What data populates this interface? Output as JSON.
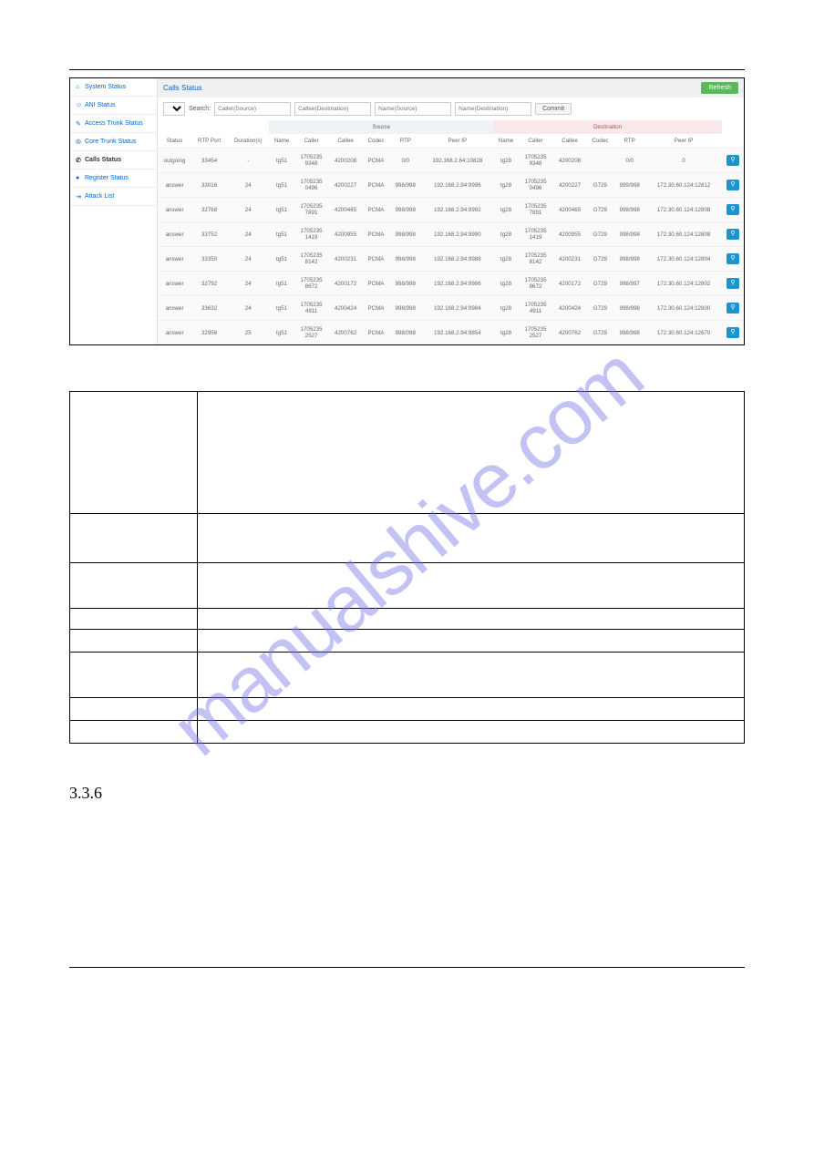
{
  "watermark": "manualshive.com",
  "section_number": "3.3.6",
  "sidebar": {
    "items": [
      {
        "label": "System Status",
        "icon": "home"
      },
      {
        "label": "ANI Status",
        "icon": "user"
      },
      {
        "label": "Access Trunk Status",
        "icon": "pencil"
      },
      {
        "label": "Core Trunk Status",
        "icon": "plug"
      },
      {
        "label": "Calls Status",
        "icon": "phone",
        "active": true
      },
      {
        "label": "Register Status",
        "icon": "record"
      },
      {
        "label": "Attack List",
        "icon": "exit"
      }
    ]
  },
  "panel": {
    "title": "Calls Status",
    "refresh_label": "Refresh",
    "page_size": "10",
    "search_label": "Search:",
    "placeholders": [
      "Caller(Source)",
      "Callee(Destination)",
      "Name(Source)",
      "Name(Destination)"
    ],
    "commit_label": "Commit",
    "group_headers": {
      "source": "Source",
      "destination": "Destination"
    },
    "columns": [
      "Status",
      "RTP Port",
      "Duration(s)",
      "Name",
      "Caller",
      "Callee",
      "Codec",
      "RTP",
      "Peer IP",
      "Name",
      "Caller",
      "Callee",
      "Codec",
      "RTP",
      "Peer IP",
      ""
    ],
    "rows": [
      {
        "status": "outgoing",
        "rtp": "33454",
        "dur": "-",
        "sname": "tg51",
        "scaller": "17052359348",
        "scallee": "4200208",
        "scodec": "PCMA",
        "srtp": "0/0",
        "speer": "192.168.2.64:10828",
        "dname": "tg28",
        "dcaller": "17052359348",
        "dcallee": "4200208",
        "dcodec": "",
        "drtp": "0/0",
        "dpeer": "0"
      },
      {
        "status": "answer",
        "rtp": "33016",
        "dur": "24",
        "sname": "tg51",
        "scaller": "17052350496",
        "scallee": "4200227",
        "scodec": "PCMA",
        "srtp": "998/998",
        "speer": "192.168.2.94:9996",
        "dname": "tg28",
        "dcaller": "17052350496",
        "dcallee": "4200227",
        "dcodec": "G729",
        "drtp": "999/998",
        "dpeer": "172.30.60.124:12812"
      },
      {
        "status": "answer",
        "rtp": "32768",
        "dur": "24",
        "sname": "tg51",
        "scaller": "17052357891",
        "scallee": "4200465",
        "scodec": "PCMA",
        "srtp": "998/998",
        "speer": "192.168.2.94:9992",
        "dname": "tg28",
        "dcaller": "17052357891",
        "dcallee": "4200465",
        "dcodec": "G729",
        "drtp": "998/998",
        "dpeer": "172.30.60.124:12808"
      },
      {
        "status": "answer",
        "rtp": "33752",
        "dur": "24",
        "sname": "tg51",
        "scaller": "17052351419",
        "scallee": "4200955",
        "scodec": "PCMA",
        "srtp": "998/998",
        "speer": "192.168.2.94:9990",
        "dname": "tg28",
        "dcaller": "17052351419",
        "dcallee": "4200955",
        "dcodec": "G729",
        "drtp": "998/998",
        "dpeer": "172.30.60.124:12808"
      },
      {
        "status": "answer",
        "rtp": "33350",
        "dur": "24",
        "sname": "tg51",
        "scaller": "17052358142",
        "scallee": "4200231",
        "scodec": "PCMA",
        "srtp": "998/998",
        "speer": "192.168.2.94:9988",
        "dname": "tg28",
        "dcaller": "17052358142",
        "dcallee": "4200231",
        "dcodec": "G729",
        "drtp": "998/998",
        "dpeer": "172.30.60.124:12804"
      },
      {
        "status": "answer",
        "rtp": "32792",
        "dur": "24",
        "sname": "tg51",
        "scaller": "17052358672",
        "scallee": "4200172",
        "scodec": "PCMA",
        "srtp": "998/998",
        "speer": "192.168.2.94:9986",
        "dname": "tg28",
        "dcaller": "17052358672",
        "dcallee": "4200172",
        "dcodec": "G729",
        "drtp": "998/997",
        "dpeer": "172.30.60.124:12802"
      },
      {
        "status": "answer",
        "rtp": "33632",
        "dur": "24",
        "sname": "tg51",
        "scaller": "17052354911",
        "scallee": "4200424",
        "scodec": "PCMA",
        "srtp": "998/998",
        "speer": "192.168.2.94:9984",
        "dname": "tg28",
        "dcaller": "17052354911",
        "dcallee": "4200424",
        "dcodec": "G729",
        "drtp": "998/998",
        "dpeer": "172.30.60.124:12800"
      },
      {
        "status": "answer",
        "rtp": "32956",
        "dur": "25",
        "sname": "tg51",
        "scaller": "17052352527",
        "scallee": "4200762",
        "scodec": "PCMA",
        "srtp": "998/098",
        "speer": "192.168.2.94:9854",
        "dname": "tg28",
        "dcaller": "17052352527",
        "dcallee": "4200762",
        "dcodec": "G729",
        "drtp": "998/998",
        "dpeer": "172.30.60.124:12670"
      }
    ]
  }
}
